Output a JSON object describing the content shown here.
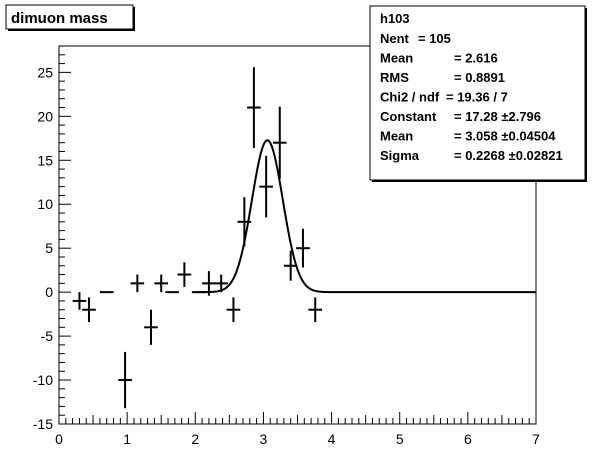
{
  "chart_data": {
    "type": "scatter",
    "title": "dimuon mass",
    "xlabel": "",
    "ylabel": "",
    "xlim": [
      0,
      7
    ],
    "ylim": [
      -15,
      28
    ],
    "x_ticks": [
      0,
      1,
      2,
      3,
      4,
      5,
      6,
      7
    ],
    "y_ticks": [
      -15,
      -10,
      -5,
      0,
      5,
      10,
      15,
      20,
      25
    ],
    "grid": false,
    "bin_width": 0.2,
    "points": [
      {
        "x": 0.3,
        "y": -1,
        "err": 1
      },
      {
        "x": 0.44,
        "y": -2,
        "err": 1.4
      },
      {
        "x": 0.7,
        "y": 0,
        "err": 0
      },
      {
        "x": 0.97,
        "y": -10,
        "err": 3.2
      },
      {
        "x": 1.15,
        "y": 1,
        "err": 1
      },
      {
        "x": 1.35,
        "y": -4,
        "err": 2
      },
      {
        "x": 1.5,
        "y": 1,
        "err": 1
      },
      {
        "x": 1.66,
        "y": 0,
        "err": 0
      },
      {
        "x": 1.84,
        "y": 2,
        "err": 1.4
      },
      {
        "x": 2.05,
        "y": 0,
        "err": 0
      },
      {
        "x": 2.2,
        "y": 1,
        "err": 1.4
      },
      {
        "x": 2.38,
        "y": 1,
        "err": 1
      },
      {
        "x": 2.56,
        "y": -2,
        "err": 1.4
      },
      {
        "x": 2.72,
        "y": 8,
        "err": 2.8
      },
      {
        "x": 2.86,
        "y": 21,
        "err": 4.6
      },
      {
        "x": 3.04,
        "y": 12,
        "err": 3.5
      },
      {
        "x": 3.24,
        "y": 17,
        "err": 4.1
      },
      {
        "x": 3.4,
        "y": 3,
        "err": 1.7
      },
      {
        "x": 3.58,
        "y": 5,
        "err": 2.2
      },
      {
        "x": 3.76,
        "y": -2,
        "err": 1.4
      }
    ],
    "fit": {
      "function": "gaus",
      "constant": 17.28,
      "mean": 3.058,
      "sigma": 0.2268,
      "x_from": 2.0,
      "x_to": 7.0
    },
    "stats_box": {
      "placement": "top-right",
      "title": "h103",
      "rows": [
        {
          "label": "Nent",
          "value": "= 105"
        },
        {
          "label": "Mean",
          "value": "=  2.616"
        },
        {
          "label": "RMS",
          "value": "=  0.8891"
        },
        {
          "label": "Chi2 / ndf",
          "value": "= 19.36 / 7"
        },
        {
          "label": "Constant",
          "value": "= 17.28 ±2.796"
        },
        {
          "label": "Mean",
          "value": "= 3.058  ±0.04504"
        },
        {
          "label": "Sigma",
          "value": "= 0.2268 ±0.02821"
        }
      ]
    }
  }
}
